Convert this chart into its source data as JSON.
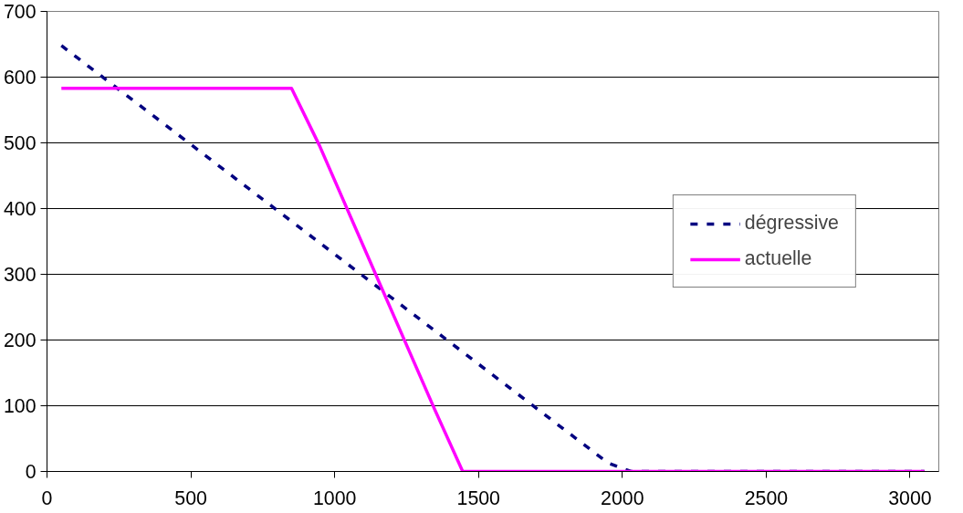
{
  "chart_data": {
    "type": "line",
    "xlim": [
      0,
      3100
    ],
    "xticks": [
      0,
      500,
      1000,
      1500,
      2000,
      2500,
      3000
    ],
    "ylim": [
      0,
      700
    ],
    "yticks": [
      0,
      100,
      200,
      300,
      400,
      500,
      600,
      700
    ],
    "grid": "y",
    "legend": "right",
    "marker": "none",
    "series": [
      {
        "name": "dégressive",
        "color": "#000080",
        "line_style": "dashed",
        "x": [
          50,
          1950,
          2030,
          3050
        ],
        "values": [
          648,
          13,
          0,
          0
        ]
      },
      {
        "name": "actuelle",
        "color": "#ff00ff",
        "line_style": "solid",
        "x": [
          50,
          850,
          947,
          1347,
          1445,
          3050
        ],
        "values": [
          583,
          583,
          496,
          95,
          0,
          0
        ]
      }
    ]
  }
}
